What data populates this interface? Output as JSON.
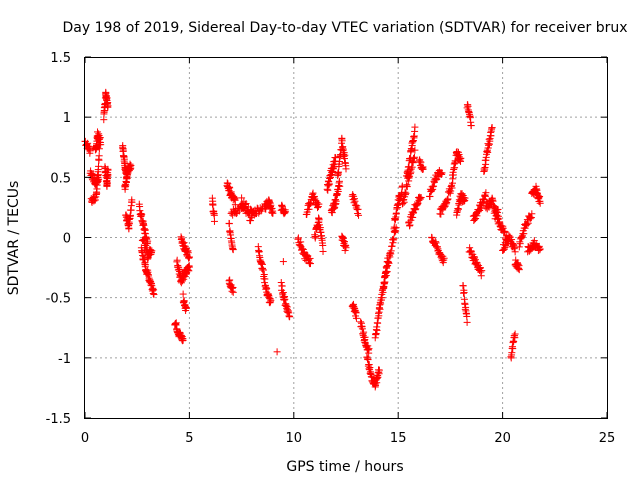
{
  "chart_data": {
    "type": "scatter",
    "title": "Day 198 of 2019, Sidereal Day-to-day VTEC variation (SDTVAR) for receiver brux",
    "xlabel": "GPS time / hours",
    "ylabel": "SDTVAR / TECUs",
    "xlim": [
      0,
      25
    ],
    "ylim": [
      -1.5,
      1.5
    ],
    "xticks": [
      0,
      5,
      10,
      15,
      20,
      25
    ],
    "xtick_labels": [
      "0",
      "5",
      "10",
      "15",
      "20",
      "25"
    ],
    "yticks": [
      -1.5,
      -1,
      -0.5,
      0,
      0.5,
      1,
      1.5
    ],
    "ytick_labels": [
      "-1.5",
      "-1",
      "-0.5",
      "0",
      "0.5",
      "1",
      "1.5"
    ],
    "grid": true,
    "marker": "+",
    "color": "#ff0000",
    "series": [
      {
        "name": "SDTVAR",
        "segments": [
          {
            "x": [
              0.0,
              0.25
            ],
            "y": [
              0.8,
              0.72
            ]
          },
          {
            "x": [
              0.25,
              0.5,
              0.65
            ],
            "y": [
              0.55,
              0.45,
              0.5
            ]
          },
          {
            "x": [
              0.3,
              0.55,
              0.7
            ],
            "y": [
              0.3,
              0.35,
              0.75
            ]
          },
          {
            "x": [
              0.5,
              0.6,
              0.75
            ],
            "y": [
              0.7,
              0.85,
              0.8
            ]
          },
          {
            "x": [
              0.9,
              1.0,
              1.1
            ],
            "y": [
              1.0,
              1.2,
              1.1
            ]
          },
          {
            "x": [
              0.95,
              1.05,
              1.1
            ],
            "y": [
              0.6,
              0.45,
              0.55
            ]
          },
          {
            "x": [
              1.8,
              1.9,
              2.0
            ],
            "y": [
              0.75,
              0.6,
              0.5
            ]
          },
          {
            "x": [
              1.9,
              2.05,
              2.2
            ],
            "y": [
              0.4,
              0.55,
              0.6
            ]
          },
          {
            "x": [
              1.95,
              2.1,
              2.25
            ],
            "y": [
              0.2,
              0.1,
              0.3
            ]
          },
          {
            "x": [
              2.6,
              2.8,
              3.0
            ],
            "y": [
              0.25,
              0.1,
              -0.05
            ]
          },
          {
            "x": [
              2.7,
              2.9,
              3.1,
              3.3
            ],
            "y": [
              -0.1,
              -0.25,
              -0.35,
              -0.45
            ]
          },
          {
            "x": [
              2.75,
              3.0,
              3.2
            ],
            "y": [
              0.0,
              -0.15,
              -0.1
            ]
          },
          {
            "x": [
              4.3,
              4.5,
              4.7
            ],
            "y": [
              -0.7,
              -0.8,
              -0.85
            ]
          },
          {
            "x": [
              4.4,
              4.6,
              4.8,
              5.0
            ],
            "y": [
              -0.2,
              -0.35,
              -0.3,
              -0.25
            ]
          },
          {
            "x": [
              4.6,
              4.8,
              5.0
            ],
            "y": [
              0.0,
              -0.1,
              -0.15
            ]
          },
          {
            "x": [
              4.7,
              4.85
            ],
            "y": [
              -0.5,
              -0.6
            ]
          },
          {
            "x": [
              6.1,
              6.2
            ],
            "y": [
              0.3,
              0.15
            ]
          },
          {
            "x": [
              6.8,
              7.0,
              7.2
            ],
            "y": [
              0.45,
              0.35,
              0.3
            ]
          },
          {
            "x": [
              6.9,
              7.1
            ],
            "y": [
              0.1,
              -0.1
            ]
          },
          {
            "x": [
              6.9,
              7.1
            ],
            "y": [
              -0.35,
              -0.45
            ]
          },
          {
            "x": [
              7.0,
              7.5,
              8.0
            ],
            "y": [
              0.2,
              0.25,
              0.15
            ]
          },
          {
            "x": [
              7.5,
              8.0,
              8.5
            ],
            "y": [
              0.3,
              0.2,
              0.25
            ]
          },
          {
            "x": [
              8.3,
              8.5,
              8.7,
              8.9
            ],
            "y": [
              -0.1,
              -0.25,
              -0.45,
              -0.55
            ]
          },
          {
            "x": [
              8.6,
              8.8,
              9.0
            ],
            "y": [
              0.25,
              0.3,
              0.2
            ]
          },
          {
            "x": [
              9.2
            ],
            "y": [
              -0.95
            ]
          },
          {
            "x": [
              9.4,
              9.6
            ],
            "y": [
              0.25,
              0.2
            ]
          },
          {
            "x": [
              9.4,
              9.6,
              9.8
            ],
            "y": [
              -0.4,
              -0.55,
              -0.65
            ]
          },
          {
            "x": [
              9.5
            ],
            "y": [
              -0.2
            ]
          },
          {
            "x": [
              10.2,
              10.5,
              10.8
            ],
            "y": [
              0.0,
              -0.15,
              -0.2
            ]
          },
          {
            "x": [
              10.6,
              10.9,
              11.2
            ],
            "y": [
              0.2,
              0.35,
              0.25
            ]
          },
          {
            "x": [
              11.0,
              11.2,
              11.4
            ],
            "y": [
              0.0,
              0.15,
              -0.1
            ]
          },
          {
            "x": [
              11.6,
              11.8,
              12.0
            ],
            "y": [
              0.4,
              0.55,
              0.65
            ]
          },
          {
            "x": [
              11.8,
              12.0,
              12.2
            ],
            "y": [
              0.2,
              0.3,
              0.45
            ]
          },
          {
            "x": [
              12.1,
              12.3,
              12.5
            ],
            "y": [
              0.5,
              0.8,
              0.6
            ]
          },
          {
            "x": [
              12.3,
              12.5
            ],
            "y": [
              0.0,
              -0.1
            ]
          },
          {
            "x": [
              12.8,
              13.0
            ],
            "y": [
              -0.55,
              -0.65
            ]
          },
          {
            "x": [
              12.8,
              13.1
            ],
            "y": [
              0.35,
              0.2
            ]
          },
          {
            "x": [
              13.2,
              13.4,
              13.6
            ],
            "y": [
              -0.7,
              -0.85,
              -0.95
            ]
          },
          {
            "x": [
              13.5,
              13.7,
              13.9,
              14.1
            ],
            "y": [
              -1.0,
              -1.15,
              -1.22,
              -1.1
            ]
          },
          {
            "x": [
              13.9,
              14.1,
              14.3,
              14.5
            ],
            "y": [
              -0.85,
              -0.6,
              -0.4,
              -0.2
            ]
          },
          {
            "x": [
              14.3,
              14.6,
              14.9
            ],
            "y": [
              -0.4,
              -0.15,
              0.1
            ]
          },
          {
            "x": [
              14.8,
              15.0,
              15.2
            ],
            "y": [
              0.1,
              0.3,
              0.4
            ]
          },
          {
            "x": [
              15.2,
              15.5,
              15.8
            ],
            "y": [
              0.25,
              0.5,
              0.7
            ]
          },
          {
            "x": [
              15.4,
              15.6,
              15.8
            ],
            "y": [
              0.5,
              0.7,
              0.9
            ]
          },
          {
            "x": [
              15.5,
              15.8,
              16.1
            ],
            "y": [
              0.1,
              0.25,
              0.35
            ]
          },
          {
            "x": [
              16.0,
              16.2
            ],
            "y": [
              0.65,
              0.55
            ]
          },
          {
            "x": [
              16.5,
              16.8,
              17.1
            ],
            "y": [
              0.35,
              0.5,
              0.55
            ]
          },
          {
            "x": [
              16.6,
              16.9,
              17.2
            ],
            "y": [
              0.0,
              -0.1,
              -0.2
            ]
          },
          {
            "x": [
              17.0,
              17.3,
              17.6
            ],
            "y": [
              0.2,
              0.3,
              0.45
            ]
          },
          {
            "x": [
              17.6,
              17.8,
              18.0
            ],
            "y": [
              0.5,
              0.7,
              0.65
            ]
          },
          {
            "x": [
              17.8,
              18.0,
              18.2
            ],
            "y": [
              0.2,
              0.35,
              0.3
            ]
          },
          {
            "x": [
              18.1,
              18.3
            ],
            "y": [
              -0.4,
              -0.7
            ]
          },
          {
            "x": [
              18.3,
              18.5
            ],
            "y": [
              1.1,
              0.95
            ]
          },
          {
            "x": [
              18.4,
              18.7,
              19.0
            ],
            "y": [
              -0.1,
              -0.2,
              -0.3
            ]
          },
          {
            "x": [
              18.6,
              18.9,
              19.2
            ],
            "y": [
              0.15,
              0.25,
              0.35
            ]
          },
          {
            "x": [
              19.1,
              19.3,
              19.5
            ],
            "y": [
              0.55,
              0.75,
              0.9
            ]
          },
          {
            "x": [
              19.2,
              19.5,
              19.8
            ],
            "y": [
              0.25,
              0.3,
              0.2
            ]
          },
          {
            "x": [
              19.6,
              19.9,
              20.2
            ],
            "y": [
              0.2,
              0.1,
              0.0
            ]
          },
          {
            "x": [
              20.0,
              20.3,
              20.6
            ],
            "y": [
              -0.1,
              0.0,
              -0.1
            ]
          },
          {
            "x": [
              20.4,
              20.6
            ],
            "y": [
              -1.0,
              -0.8
            ]
          },
          {
            "x": [
              20.6,
              20.8
            ],
            "y": [
              -0.2,
              -0.25
            ]
          },
          {
            "x": [
              20.8,
              21.1,
              21.4
            ],
            "y": [
              -0.05,
              0.1,
              0.2
            ]
          },
          {
            "x": [
              21.2,
              21.5,
              21.8
            ],
            "y": [
              -0.1,
              -0.05,
              -0.1
            ]
          },
          {
            "x": [
              21.4,
              21.6,
              21.8
            ],
            "y": [
              0.35,
              0.4,
              0.3
            ]
          }
        ]
      }
    ]
  }
}
